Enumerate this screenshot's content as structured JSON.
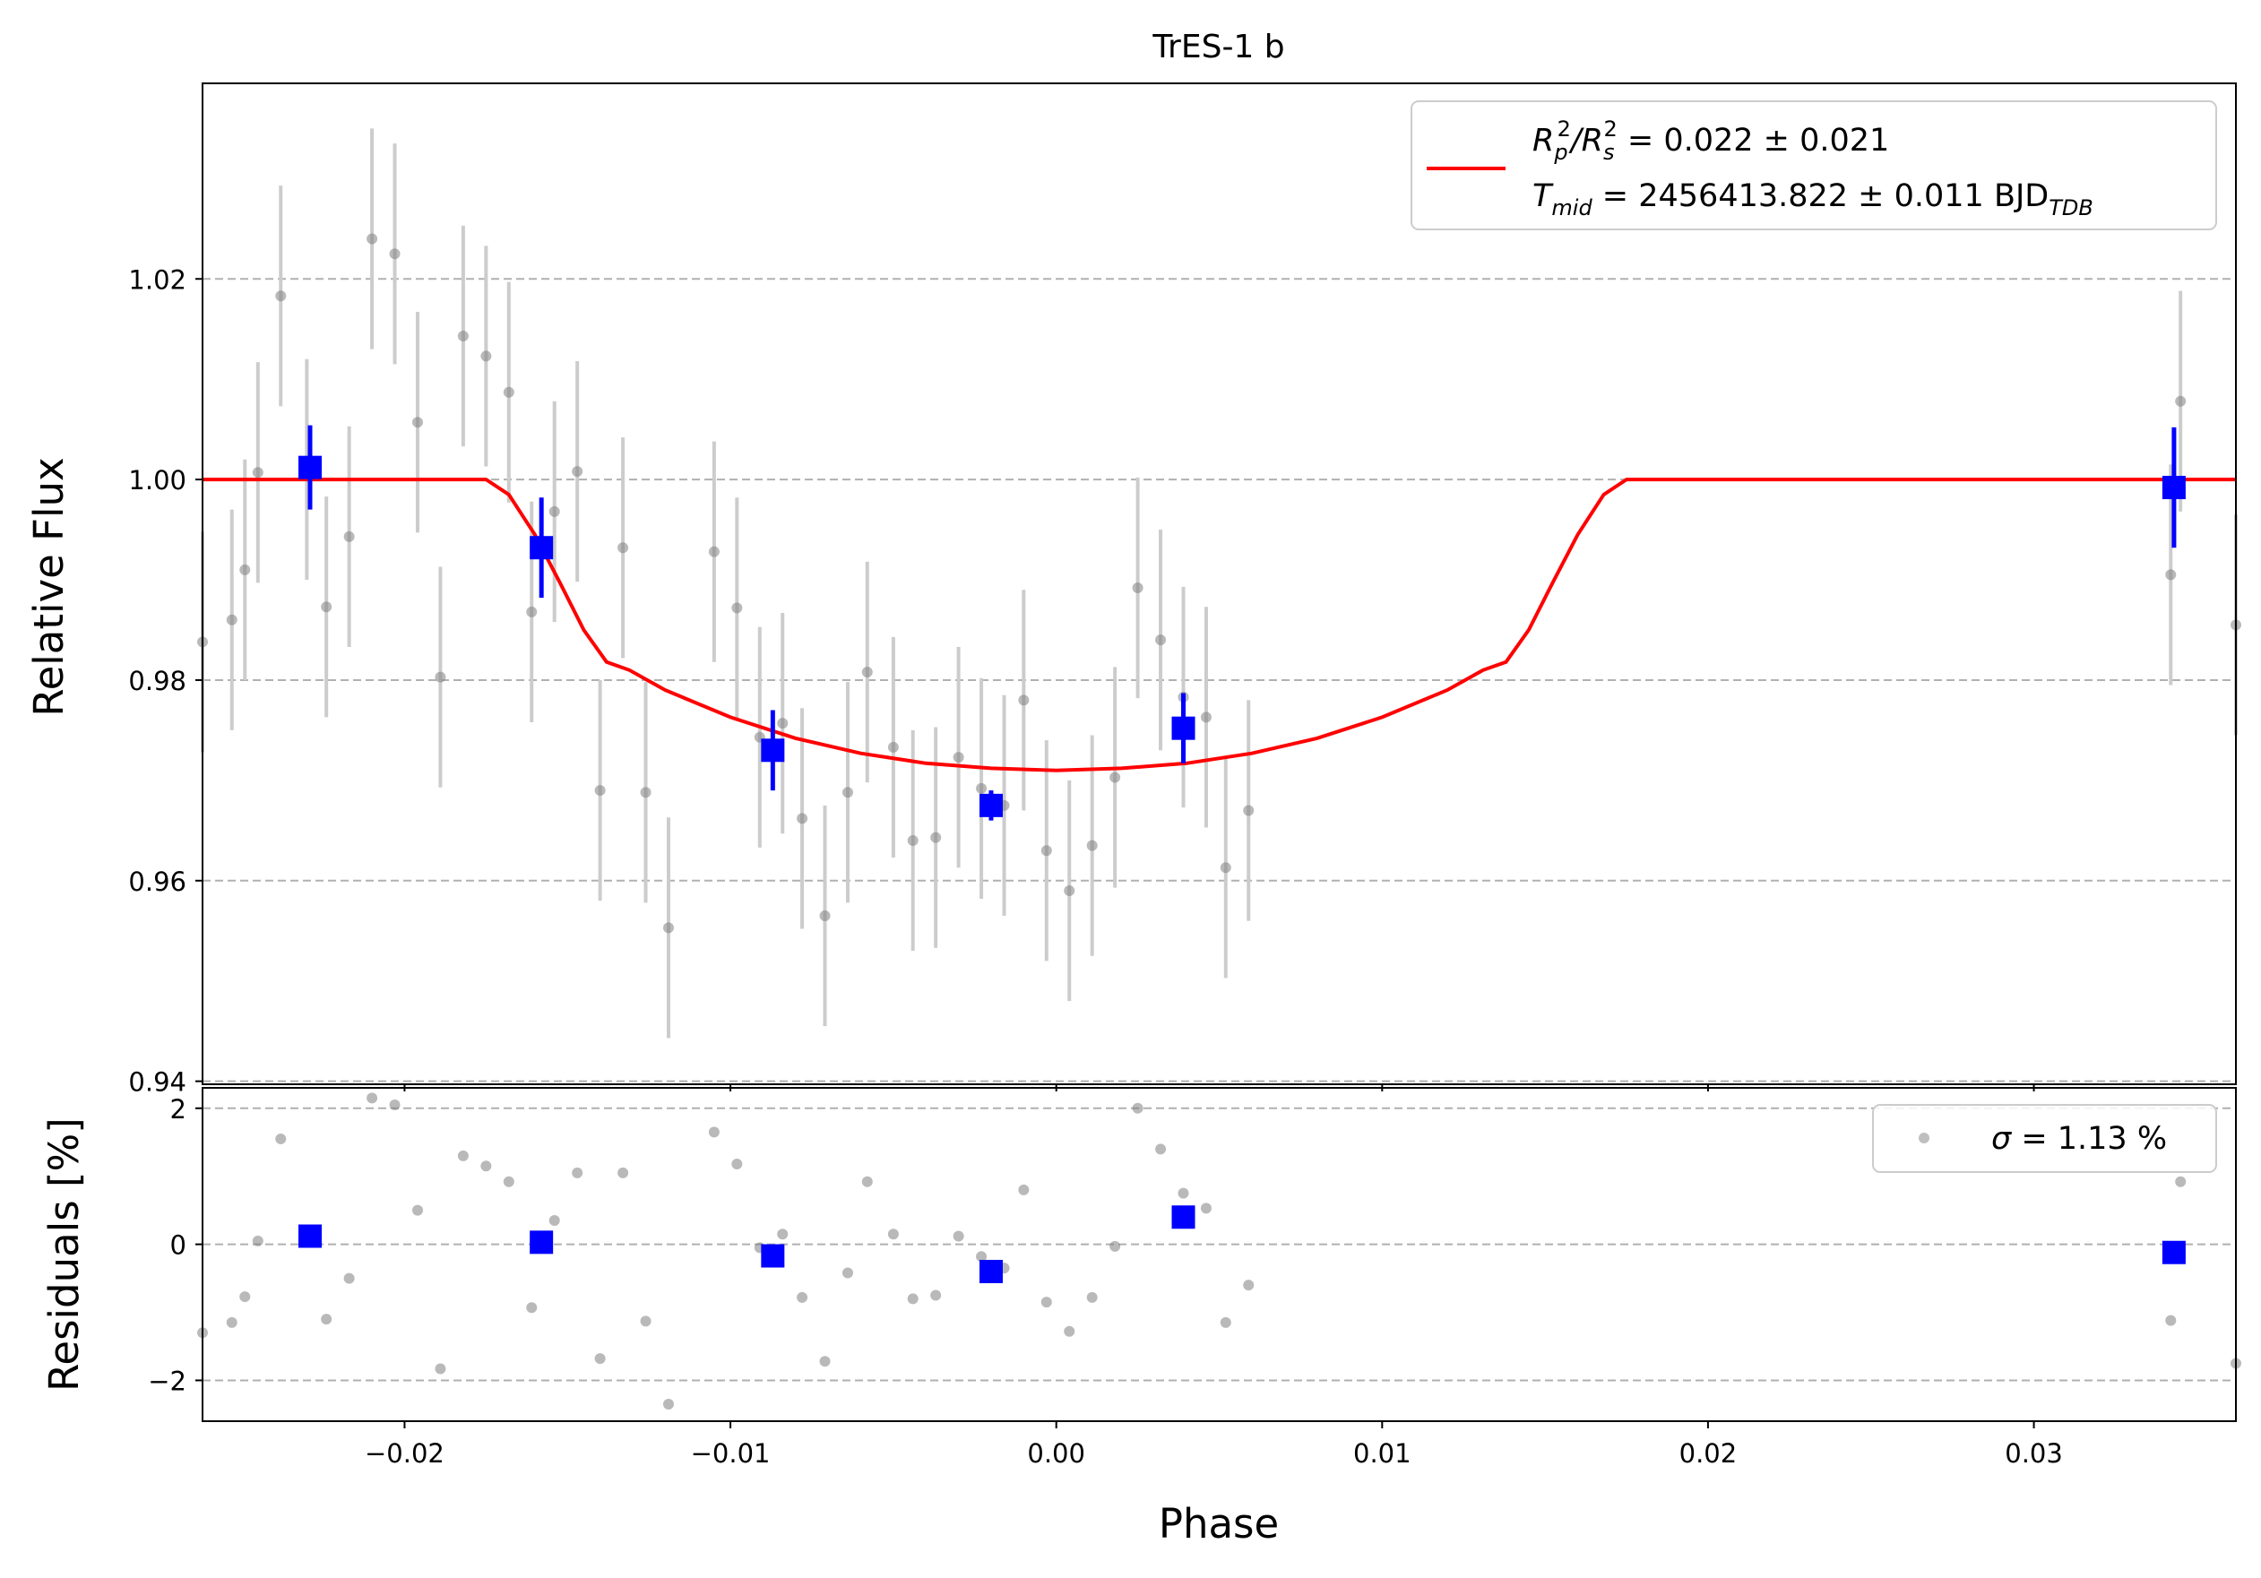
{
  "chart_data": [
    {
      "type": "scatter",
      "title": "TrES-1 b",
      "xlabel": "",
      "ylabel": "Relative Flux",
      "xlim": [
        -0.0262,
        0.0362
      ],
      "ylim": [
        0.9397,
        1.0395
      ],
      "yticks": [
        0.94,
        0.96,
        0.98,
        1.0,
        1.02
      ],
      "ytick_labels": [
        "0.94",
        "0.96",
        "0.98",
        "1.00",
        "1.02"
      ],
      "grid": "horizontal dashed",
      "legend": {
        "position": "top-right",
        "line1": {
          "pre": "R",
          "sub1": "p",
          "sup1": "2",
          "slash": "/R",
          "sub2": "s",
          "sup2": "2",
          "rest": " = 0.022 ± 0.021"
        },
        "line2": {
          "pre": "T",
          "sub1": "mid",
          "rest": " = 2456413.822 ± 0.011 BJD",
          "sub2": "TDB"
        }
      },
      "colors": {
        "model": "#ff0000",
        "binned": "#0000ff",
        "raw": "#808080",
        "raw_err": "#cccccc",
        "grid": "#b0b0b0"
      },
      "model": {
        "phase": [
          -0.0262,
          -0.0175,
          -0.0168,
          -0.016,
          -0.0152,
          -0.0145,
          -0.0138,
          -0.0131,
          -0.012,
          -0.01,
          -0.008,
          -0.006,
          -0.004,
          -0.002,
          0.0,
          0.002,
          0.004,
          0.006,
          0.008,
          0.01,
          0.012,
          0.0131,
          0.0138,
          0.0145,
          0.0152,
          0.016,
          0.0168,
          0.0175,
          0.0362
        ],
        "flux": [
          1.0,
          1.0,
          0.9985,
          0.9945,
          0.9895,
          0.985,
          0.9818,
          0.981,
          0.979,
          0.9763,
          0.9742,
          0.9727,
          0.9717,
          0.9712,
          0.971,
          0.9712,
          0.9717,
          0.9727,
          0.9742,
          0.9763,
          0.979,
          0.981,
          0.9818,
          0.985,
          0.9895,
          0.9945,
          0.9985,
          1.0,
          1.0
        ]
      },
      "raw": [
        {
          "x": -0.0262,
          "y": 0.9838,
          "e": 0.011
        },
        {
          "x": -0.0253,
          "y": 0.986,
          "e": 0.011
        },
        {
          "x": -0.0249,
          "y": 0.991,
          "e": 0.011
        },
        {
          "x": -0.0245,
          "y": 1.0007,
          "e": 0.011
        },
        {
          "x": -0.0238,
          "y": 1.0183,
          "e": 0.011
        },
        {
          "x": -0.023,
          "y": 1.001,
          "e": 0.011
        },
        {
          "x": -0.0224,
          "y": 0.9873,
          "e": 0.011
        },
        {
          "x": -0.0217,
          "y": 0.9943,
          "e": 0.011
        },
        {
          "x": -0.021,
          "y": 1.024,
          "e": 0.011
        },
        {
          "x": -0.0203,
          "y": 1.0225,
          "e": 0.011
        },
        {
          "x": -0.0196,
          "y": 1.0057,
          "e": 0.011
        },
        {
          "x": -0.0189,
          "y": 0.9803,
          "e": 0.011
        },
        {
          "x": -0.0182,
          "y": 1.0143,
          "e": 0.011
        },
        {
          "x": -0.0175,
          "y": 1.0123,
          "e": 0.011
        },
        {
          "x": -0.0168,
          "y": 1.0087,
          "e": 0.011
        },
        {
          "x": -0.0161,
          "y": 0.9868,
          "e": 0.011
        },
        {
          "x": -0.0154,
          "y": 0.9968,
          "e": 0.011
        },
        {
          "x": -0.0147,
          "y": 1.0008,
          "e": 0.011
        },
        {
          "x": -0.014,
          "y": 0.969,
          "e": 0.011
        },
        {
          "x": -0.0133,
          "y": 0.9932,
          "e": 0.011
        },
        {
          "x": -0.0126,
          "y": 0.9688,
          "e": 0.011
        },
        {
          "x": -0.0119,
          "y": 0.9553,
          "e": 0.011
        },
        {
          "x": -0.0105,
          "y": 0.9928,
          "e": 0.011
        },
        {
          "x": -0.0098,
          "y": 0.9872,
          "e": 0.011
        },
        {
          "x": -0.0091,
          "y": 0.9743,
          "e": 0.011
        },
        {
          "x": -0.0084,
          "y": 0.9757,
          "e": 0.011
        },
        {
          "x": -0.0078,
          "y": 0.9662,
          "e": 0.011
        },
        {
          "x": -0.0071,
          "y": 0.9565,
          "e": 0.011
        },
        {
          "x": -0.0064,
          "y": 0.9688,
          "e": 0.011
        },
        {
          "x": -0.0058,
          "y": 0.9808,
          "e": 0.011
        },
        {
          "x": -0.005,
          "y": 0.9733,
          "e": 0.011
        },
        {
          "x": -0.0044,
          "y": 0.964,
          "e": 0.011
        },
        {
          "x": -0.0037,
          "y": 0.9643,
          "e": 0.011
        },
        {
          "x": -0.003,
          "y": 0.9723,
          "e": 0.011
        },
        {
          "x": -0.0023,
          "y": 0.9692,
          "e": 0.011
        },
        {
          "x": -0.0016,
          "y": 0.9675,
          "e": 0.011
        },
        {
          "x": -0.001,
          "y": 0.978,
          "e": 0.011
        },
        {
          "x": -0.0003,
          "y": 0.963,
          "e": 0.011
        },
        {
          "x": 0.0004,
          "y": 0.959,
          "e": 0.011
        },
        {
          "x": 0.0011,
          "y": 0.9635,
          "e": 0.011
        },
        {
          "x": 0.0018,
          "y": 0.9703,
          "e": 0.011
        },
        {
          "x": 0.0025,
          "y": 0.9892,
          "e": 0.011
        },
        {
          "x": 0.0032,
          "y": 0.984,
          "e": 0.011
        },
        {
          "x": 0.0039,
          "y": 0.9783,
          "e": 0.011
        },
        {
          "x": 0.0046,
          "y": 0.9763,
          "e": 0.011
        },
        {
          "x": 0.0052,
          "y": 0.9613,
          "e": 0.011
        },
        {
          "x": 0.0059,
          "y": 0.967,
          "e": 0.011
        },
        {
          "x": 0.0342,
          "y": 0.9905,
          "e": 0.011
        },
        {
          "x": 0.0345,
          "y": 1.0078,
          "e": 0.011
        },
        {
          "x": 0.0362,
          "y": 0.9855,
          "e": 0.011
        }
      ],
      "binned": [
        {
          "x": -0.0229,
          "y": 1.0012,
          "e": 0.0042
        },
        {
          "x": -0.0158,
          "y": 0.9932,
          "e": 0.005
        },
        {
          "x": -0.0087,
          "y": 0.973,
          "e": 0.004
        },
        {
          "x": -0.002,
          "y": 0.9675,
          "e": 0.0015
        },
        {
          "x": 0.0039,
          "y": 0.9752,
          "e": 0.0035
        },
        {
          "x": 0.0343,
          "y": 0.9992,
          "e": 0.006
        }
      ]
    },
    {
      "type": "scatter",
      "title": "",
      "xlabel": "Phase",
      "ylabel": "Residuals [%]",
      "xlim": [
        -0.0262,
        0.0362
      ],
      "ylim": [
        -2.6,
        2.3
      ],
      "yticks": [
        -2,
        0,
        2
      ],
      "ytick_labels": [
        "−2",
        "0",
        "2"
      ],
      "xticks": [
        -0.02,
        -0.01,
        0.0,
        0.01,
        0.02,
        0.03
      ],
      "xtick_labels": [
        "−0.02",
        "−0.01",
        "0.00",
        "0.01",
        "0.02",
        "0.03"
      ],
      "grid": "horizontal dashed",
      "legend": {
        "position": "top-right",
        "sigma_symbol": "σ",
        "sigma_text": " = 1.13 %"
      },
      "raw": [
        {
          "x": -0.0262,
          "y": -1.3
        },
        {
          "x": -0.0253,
          "y": -1.15
        },
        {
          "x": -0.0249,
          "y": -0.77
        },
        {
          "x": -0.0245,
          "y": 0.05
        },
        {
          "x": -0.0238,
          "y": 1.55
        },
        {
          "x": -0.023,
          "y": 0.1
        },
        {
          "x": -0.0224,
          "y": -1.1
        },
        {
          "x": -0.0217,
          "y": -0.5
        },
        {
          "x": -0.021,
          "y": 2.15
        },
        {
          "x": -0.0203,
          "y": 2.05
        },
        {
          "x": -0.0196,
          "y": 0.5
        },
        {
          "x": -0.0189,
          "y": -1.83
        },
        {
          "x": -0.0182,
          "y": 1.3
        },
        {
          "x": -0.0175,
          "y": 1.15
        },
        {
          "x": -0.0168,
          "y": 0.92
        },
        {
          "x": -0.0161,
          "y": -0.93
        },
        {
          "x": -0.0154,
          "y": 0.35
        },
        {
          "x": -0.0147,
          "y": 1.05
        },
        {
          "x": -0.014,
          "y": -1.68
        },
        {
          "x": -0.0133,
          "y": 1.05
        },
        {
          "x": -0.0126,
          "y": -1.13
        },
        {
          "x": -0.0119,
          "y": -2.35
        },
        {
          "x": -0.0105,
          "y": 1.65
        },
        {
          "x": -0.0098,
          "y": 1.18
        },
        {
          "x": -0.0091,
          "y": -0.05
        },
        {
          "x": -0.0084,
          "y": 0.15
        },
        {
          "x": -0.0078,
          "y": -0.78
        },
        {
          "x": -0.0071,
          "y": -1.72
        },
        {
          "x": -0.0064,
          "y": -0.42
        },
        {
          "x": -0.0058,
          "y": 0.92
        },
        {
          "x": -0.005,
          "y": 0.15
        },
        {
          "x": -0.0044,
          "y": -0.8
        },
        {
          "x": -0.0037,
          "y": -0.75
        },
        {
          "x": -0.003,
          "y": 0.12
        },
        {
          "x": -0.0023,
          "y": -0.18
        },
        {
          "x": -0.0016,
          "y": -0.35
        },
        {
          "x": -0.001,
          "y": 0.8
        },
        {
          "x": -0.0003,
          "y": -0.85
        },
        {
          "x": 0.0004,
          "y": -1.28
        },
        {
          "x": 0.0011,
          "y": -0.78
        },
        {
          "x": 0.0018,
          "y": -0.03
        },
        {
          "x": 0.0025,
          "y": 2.0
        },
        {
          "x": 0.0032,
          "y": 1.4
        },
        {
          "x": 0.0039,
          "y": 0.75
        },
        {
          "x": 0.0046,
          "y": 0.53
        },
        {
          "x": 0.0052,
          "y": -1.15
        },
        {
          "x": 0.0059,
          "y": -0.6
        },
        {
          "x": 0.0342,
          "y": -1.12
        },
        {
          "x": 0.0345,
          "y": 0.92
        },
        {
          "x": 0.0362,
          "y": -1.75
        }
      ],
      "binned": [
        {
          "x": -0.0229,
          "y": 0.12
        },
        {
          "x": -0.0158,
          "y": 0.03
        },
        {
          "x": -0.0087,
          "y": -0.17
        },
        {
          "x": -0.002,
          "y": -0.4
        },
        {
          "x": 0.0039,
          "y": 0.4
        },
        {
          "x": 0.0343,
          "y": -0.12
        }
      ]
    }
  ]
}
